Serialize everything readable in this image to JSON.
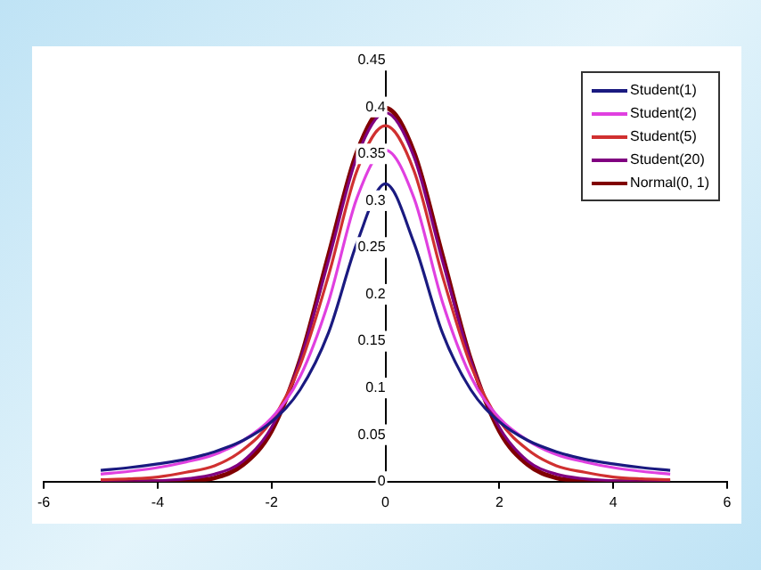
{
  "chart_data": {
    "type": "line",
    "x": [
      -5,
      -4.5,
      -4,
      -3.5,
      -3,
      -2.5,
      -2,
      -1.5,
      -1,
      -0.5,
      0,
      0.5,
      1,
      1.5,
      2,
      2.5,
      3,
      3.5,
      4,
      4.5,
      5
    ],
    "xlim": [
      -6,
      6
    ],
    "xticks": [
      -6,
      -4,
      -2,
      0,
      2,
      4,
      6
    ],
    "ylim": [
      0,
      0.45
    ],
    "yticks": [
      0,
      0.05,
      0.1,
      0.15,
      0.2,
      0.25,
      0.3,
      0.35,
      0.4,
      0.45
    ],
    "grid": false,
    "legend": "top right",
    "marker": "none",
    "line_style": "solid",
    "series": [
      {
        "name": "Student(1)",
        "color": "#1a1a80",
        "values": [
          0.012,
          0.015,
          0.019,
          0.024,
          0.032,
          0.044,
          0.064,
          0.098,
          0.159,
          0.255,
          0.318,
          0.255,
          0.159,
          0.098,
          0.064,
          0.044,
          0.032,
          0.024,
          0.019,
          0.015,
          0.012
        ]
      },
      {
        "name": "Student(2)",
        "color": "#e040e0",
        "values": [
          0.008,
          0.011,
          0.015,
          0.021,
          0.029,
          0.044,
          0.068,
          0.112,
          0.192,
          0.303,
          0.354,
          0.303,
          0.192,
          0.112,
          0.068,
          0.044,
          0.029,
          0.021,
          0.015,
          0.011,
          0.008
        ]
      },
      {
        "name": "Student(5)",
        "color": "#d03030",
        "values": [
          0.002,
          0.003,
          0.005,
          0.01,
          0.017,
          0.034,
          0.065,
          0.124,
          0.22,
          0.332,
          0.38,
          0.332,
          0.22,
          0.124,
          0.065,
          0.034,
          0.017,
          0.01,
          0.005,
          0.003,
          0.002
        ]
      },
      {
        "name": "Student(20)",
        "color": "#800080",
        "values": [
          0,
          0,
          0.001,
          0.003,
          0.008,
          0.022,
          0.058,
          0.129,
          0.236,
          0.347,
          0.394,
          0.347,
          0.236,
          0.129,
          0.058,
          0.022,
          0.008,
          0.003,
          0.001,
          0,
          0
        ]
      },
      {
        "name": "Normal(0, 1)",
        "color": "#800000",
        "values": [
          0,
          0,
          0,
          0.001,
          0.004,
          0.018,
          0.054,
          0.13,
          0.242,
          0.352,
          0.399,
          0.352,
          0.242,
          0.13,
          0.054,
          0.018,
          0.004,
          0.001,
          0,
          0,
          0
        ]
      }
    ]
  }
}
